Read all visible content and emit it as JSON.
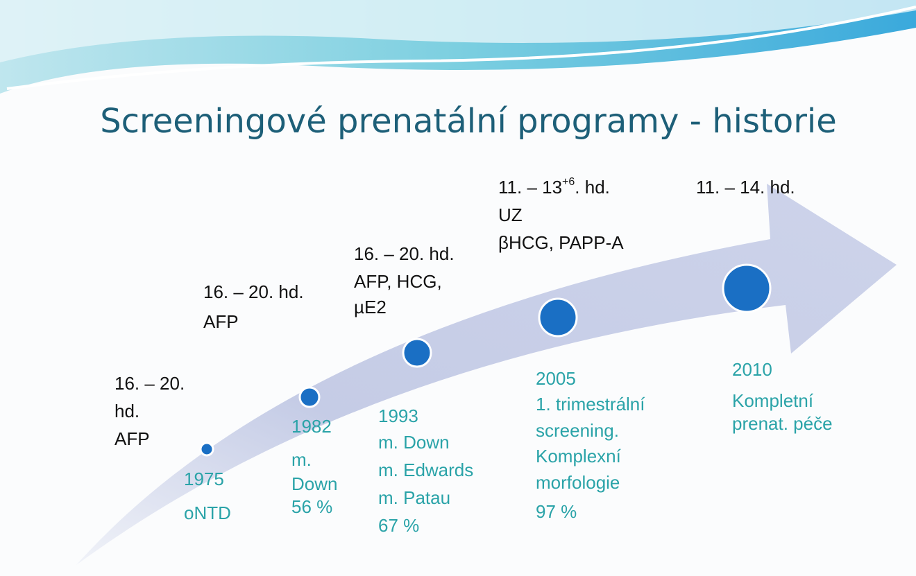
{
  "title": "Screeningové prenatální programy - historie",
  "milestones": [
    {
      "above": [
        "16. – 20.",
        "hd.",
        " AFP"
      ],
      "below": [
        "1975",
        "oNTD"
      ]
    },
    {
      "above": [
        "16. – 20. hd.",
        "AFP"
      ],
      "below": [
        "1982",
        "m.",
        "Down",
        "56 %"
      ]
    },
    {
      "above": [
        "16. – 20. hd.",
        "AFP, HCG,",
        "µE2"
      ],
      "below": [
        "1993",
        "m. Down",
        "m. Edwards",
        "m. Patau",
        "67 %"
      ]
    },
    {
      "above": [
        {
          "text": "11. – 13",
          "sup": "+6",
          "rest": ". hd."
        },
        "UZ",
        "βHCG, PAPP-A"
      ],
      "below": [
        "2005",
        "1. trimestrální",
        "screening.",
        "Komplexní",
        "morfologie",
        "97 %"
      ]
    },
    {
      "above": [
        "11. – 14. hd."
      ],
      "below": [
        "2010",
        "Kompletní",
        "prenat. péče"
      ]
    }
  ]
}
